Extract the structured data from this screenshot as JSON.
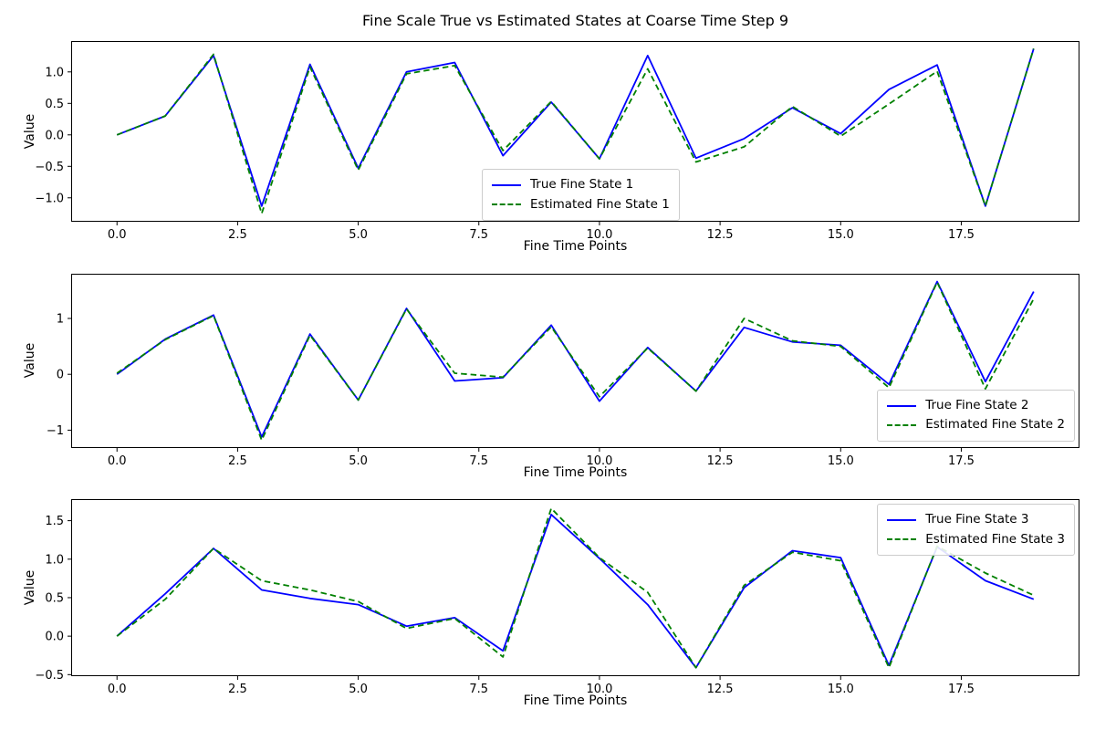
{
  "figure_title": "Fine Scale True vs Estimated States at Coarse Time Step 9",
  "chart_data": [
    {
      "type": "line",
      "title": "",
      "xlabel": "Fine Time Points",
      "ylabel": "Value",
      "x": [
        0,
        1,
        2,
        3,
        4,
        5,
        6,
        7,
        8,
        9,
        10,
        11,
        12,
        13,
        14,
        15,
        16,
        17,
        18,
        19
      ],
      "series": [
        {
          "name": "True Fine State 1",
          "color": "#0000ff",
          "line_style": "solid",
          "values": [
            0.0,
            0.3,
            1.26,
            -1.13,
            1.12,
            -0.53,
            1.0,
            1.15,
            -0.33,
            0.52,
            -0.38,
            1.26,
            -0.37,
            -0.06,
            0.43,
            0.02,
            0.72,
            1.11,
            -1.13,
            1.37
          ]
        },
        {
          "name": "Estimated Fine State 1",
          "color": "#008000",
          "line_style": "dashed",
          "values": [
            0.0,
            0.3,
            1.28,
            -1.25,
            1.08,
            -0.56,
            0.97,
            1.1,
            -0.25,
            0.53,
            -0.38,
            1.05,
            -0.43,
            -0.19,
            0.45,
            -0.02,
            0.49,
            1.01,
            -1.13,
            1.37
          ]
        }
      ],
      "xlim": [
        -0.95,
        19.95
      ],
      "ylim": [
        -1.38,
        1.49
      ],
      "xticks": [
        0,
        2.5,
        5,
        7.5,
        10,
        12.5,
        15,
        17.5
      ],
      "xtick_labels": [
        "0.0",
        "2.5",
        "5.0",
        "7.5",
        "10.0",
        "12.5",
        "15.0",
        "17.5"
      ],
      "yticks": [
        -1.0,
        -0.5,
        0.0,
        0.5,
        1.0
      ],
      "ytick_labels": [
        "−1.0",
        "−0.5",
        "0.0",
        "0.5",
        "1.0"
      ],
      "grid": false,
      "legend_position": "center-bottom"
    },
    {
      "type": "line",
      "title": "",
      "xlabel": "Fine Time Points",
      "ylabel": "Value",
      "x": [
        0,
        1,
        2,
        3,
        4,
        5,
        6,
        7,
        8,
        9,
        10,
        11,
        12,
        13,
        14,
        15,
        16,
        17,
        18,
        19
      ],
      "series": [
        {
          "name": "True Fine State 2",
          "color": "#0000ff",
          "line_style": "solid",
          "values": [
            0.0,
            0.63,
            1.06,
            -1.12,
            0.72,
            -0.46,
            1.18,
            -0.12,
            -0.06,
            0.88,
            -0.48,
            0.48,
            -0.3,
            0.84,
            0.58,
            0.52,
            -0.18,
            1.66,
            -0.13,
            1.48
          ]
        },
        {
          "name": "Estimated Fine State 2",
          "color": "#008000",
          "line_style": "dashed",
          "values": [
            0.02,
            0.62,
            1.05,
            -1.18,
            0.7,
            -0.46,
            1.17,
            0.02,
            -0.05,
            0.85,
            -0.4,
            0.47,
            -0.3,
            1.0,
            0.6,
            0.5,
            -0.24,
            1.65,
            -0.26,
            1.35
          ]
        }
      ],
      "xlim": [
        -0.95,
        19.95
      ],
      "ylim": [
        -1.32,
        1.8
      ],
      "xticks": [
        0,
        2.5,
        5,
        7.5,
        10,
        12.5,
        15,
        17.5
      ],
      "xtick_labels": [
        "0.0",
        "2.5",
        "5.0",
        "7.5",
        "10.0",
        "12.5",
        "15.0",
        "17.5"
      ],
      "yticks": [
        -1,
        0,
        1
      ],
      "ytick_labels": [
        "−1",
        "0",
        "1"
      ],
      "grid": false,
      "legend_position": "lower-right"
    },
    {
      "type": "line",
      "title": "",
      "xlabel": "Fine Time Points",
      "ylabel": "Value",
      "x": [
        0,
        1,
        2,
        3,
        4,
        5,
        6,
        7,
        8,
        9,
        10,
        11,
        12,
        13,
        14,
        15,
        16,
        17,
        18,
        19
      ],
      "series": [
        {
          "name": "True Fine State 3",
          "color": "#0000ff",
          "line_style": "solid",
          "values": [
            0.0,
            0.55,
            1.14,
            0.6,
            0.49,
            0.41,
            0.13,
            0.24,
            -0.19,
            1.58,
            1.01,
            0.41,
            -0.41,
            0.63,
            1.11,
            1.02,
            -0.38,
            1.16,
            0.72,
            0.48
          ]
        },
        {
          "name": "Estimated Fine State 3",
          "color": "#008000",
          "line_style": "dashed",
          "values": [
            0.0,
            0.48,
            1.14,
            0.72,
            0.6,
            0.45,
            0.1,
            0.23,
            -0.27,
            1.66,
            1.02,
            0.57,
            -0.41,
            0.66,
            1.09,
            0.98,
            -0.41,
            1.17,
            0.82,
            0.53
          ]
        }
      ],
      "xlim": [
        -0.95,
        19.95
      ],
      "ylim": [
        -0.52,
        1.78
      ],
      "xticks": [
        0,
        2.5,
        5,
        7.5,
        10,
        12.5,
        15,
        17.5
      ],
      "xtick_labels": [
        "0.0",
        "2.5",
        "5.0",
        "7.5",
        "10.0",
        "12.5",
        "15.0",
        "17.5"
      ],
      "yticks": [
        -0.5,
        0.0,
        0.5,
        1.0,
        1.5
      ],
      "ytick_labels": [
        "−0.5",
        "0.0",
        "0.5",
        "1.0",
        "1.5"
      ],
      "grid": false,
      "legend_position": "upper-right"
    }
  ]
}
